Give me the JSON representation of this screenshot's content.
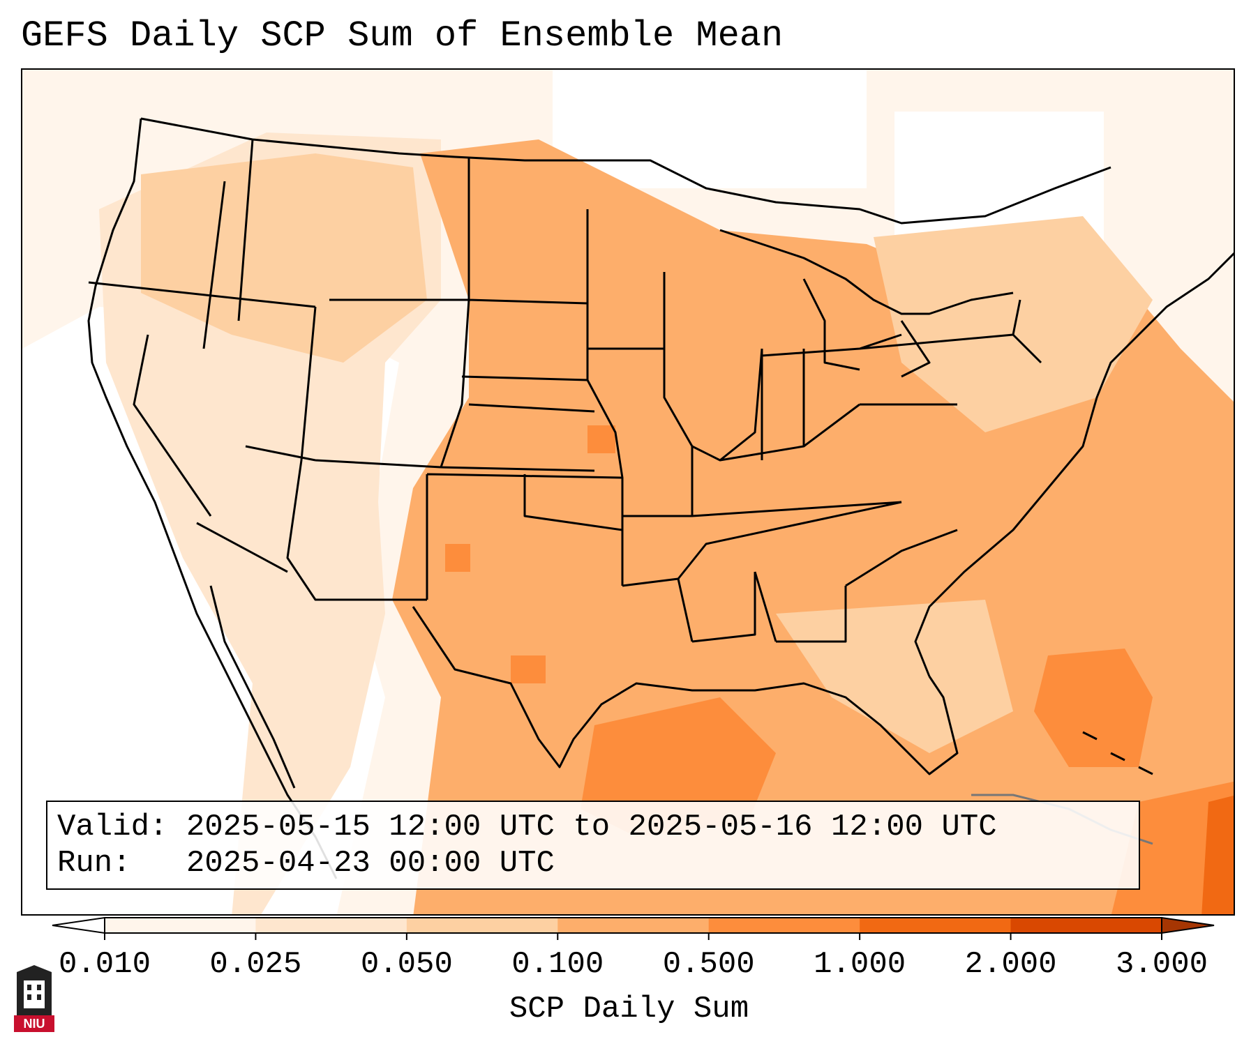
{
  "title": "GEFS Daily SCP Sum of Ensemble Mean",
  "info": {
    "valid_label": "Valid:",
    "valid_value": "2025-05-15 12:00 UTC to 2025-05-16 12:00 UTC",
    "run_label": "Run:",
    "run_value": "2025-04-23 00:00 UTC"
  },
  "colorbar": {
    "label": "SCP Daily Sum",
    "ticks": [
      "0.010",
      "0.025",
      "0.050",
      "0.100",
      "0.500",
      "1.000",
      "2.000",
      "3.000"
    ],
    "colors": [
      "#fff5eb",
      "#fee6ce",
      "#fdd0a2",
      "#fdae6b",
      "#fd8d3c",
      "#f16913",
      "#d94801"
    ],
    "extend_low_color": "#ffffff",
    "extend_high_color": "#a63603"
  },
  "logo": {
    "text": "NIU",
    "colors": {
      "red": "#c8102e",
      "dark": "#222222"
    }
  },
  "map": {
    "region": "CONUS",
    "colors": {
      "none": "#ffffff",
      "lightest": "#fff5eb",
      "light": "#fee6ce",
      "medium": "#fdd0a2",
      "base": "#fdae6b",
      "strong": "#fd8d3c"
    }
  }
}
